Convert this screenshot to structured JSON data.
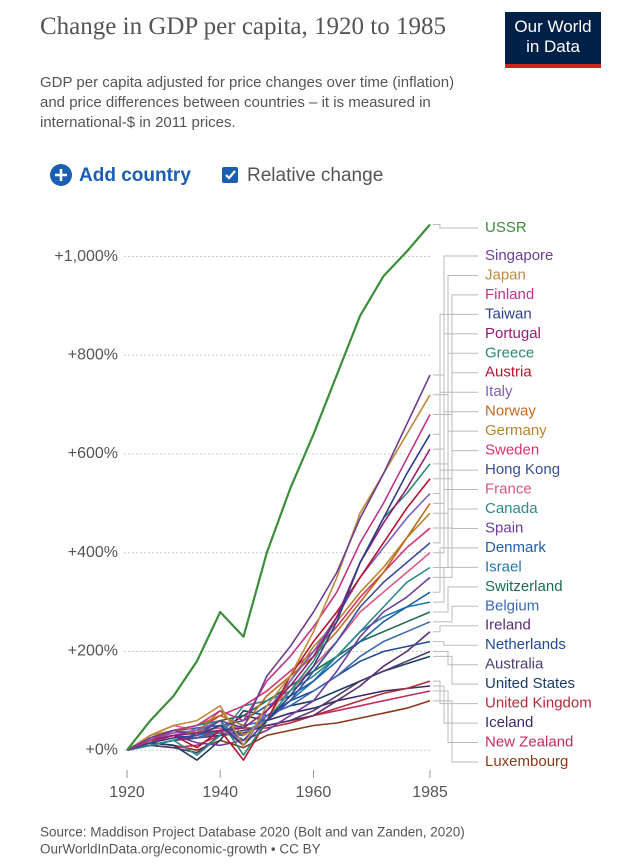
{
  "chart_data": {
    "type": "line",
    "title": "Change in GDP per capita, 1920 to 1985",
    "subtitle": "GDP per capita adjusted for price changes over time (inflation) and price differences between countries – it is measured in international-$ in 2011 prices.",
    "logo": "Our World in Data",
    "controls": {
      "add": "Add country",
      "relative": "Relative change"
    },
    "source": "Source: Maddison Project Database 2020 (Bolt and van Zanden, 2020)",
    "source_link": "OurWorldInData.org/economic-growth • CC BY",
    "x": [
      1920,
      1925,
      1930,
      1935,
      1940,
      1945,
      1950,
      1955,
      1960,
      1965,
      1970,
      1975,
      1980,
      1985
    ],
    "xlim": [
      1920,
      1985
    ],
    "xticks": [
      1920,
      1940,
      1960,
      1985
    ],
    "ylim": [
      -30,
      1070
    ],
    "yticks": [
      {
        "value": 0,
        "label": "+0%"
      },
      {
        "value": 200,
        "label": "+200%"
      },
      {
        "value": 400,
        "label": "+400%"
      },
      {
        "value": 600,
        "label": "+600%"
      },
      {
        "value": 800,
        "label": "+800%"
      },
      {
        "value": 1000,
        "label": "+1,000%"
      }
    ],
    "grid": true,
    "series": [
      {
        "name": "USSR",
        "color": "#3b8e3b",
        "values": [
          0,
          60,
          110,
          180,
          280,
          230,
          400,
          530,
          640,
          760,
          880,
          960,
          1010,
          1065
        ]
      },
      {
        "name": "Singapore",
        "color": "#6d3e91",
        "values": [
          0,
          25,
          40,
          30,
          60,
          45,
          150,
          210,
          280,
          360,
          470,
          560,
          660,
          760
        ]
      },
      {
        "name": "Japan",
        "color": "#c08a3e",
        "values": [
          0,
          30,
          50,
          60,
          90,
          10,
          90,
          150,
          240,
          350,
          480,
          560,
          640,
          720
        ]
      },
      {
        "name": "Finland",
        "color": "#c2338a",
        "values": [
          0,
          20,
          40,
          50,
          80,
          60,
          140,
          190,
          250,
          320,
          420,
          500,
          590,
          680
        ]
      },
      {
        "name": "Taiwan",
        "color": "#2b3f8a",
        "values": [
          0,
          15,
          25,
          30,
          50,
          10,
          60,
          110,
          170,
          260,
          380,
          470,
          560,
          640
        ]
      },
      {
        "name": "Portugal",
        "color": "#9a1a74",
        "values": [
          0,
          20,
          30,
          35,
          40,
          45,
          80,
          130,
          190,
          270,
          380,
          460,
          530,
          610
        ]
      },
      {
        "name": "Greece",
        "color": "#2a8a74",
        "values": [
          0,
          25,
          40,
          50,
          60,
          -10,
          60,
          120,
          180,
          270,
          380,
          470,
          520,
          580
        ]
      },
      {
        "name": "Austria",
        "color": "#b3142e",
        "values": [
          0,
          20,
          30,
          5,
          40,
          -20,
          60,
          150,
          220,
          280,
          350,
          420,
          490,
          550
        ]
      },
      {
        "name": "Italy",
        "color": "#7c5fbd",
        "values": [
          0,
          20,
          35,
          40,
          60,
          10,
          80,
          140,
          200,
          270,
          350,
          410,
          470,
          520
        ]
      },
      {
        "name": "Norway",
        "color": "#c06a1f",
        "values": [
          0,
          15,
          40,
          50,
          70,
          50,
          110,
          150,
          190,
          240,
          300,
          360,
          430,
          500
        ]
      },
      {
        "name": "Germany",
        "color": "#b7852b",
        "values": [
          0,
          30,
          40,
          35,
          80,
          30,
          60,
          140,
          210,
          260,
          320,
          370,
          430,
          480
        ]
      },
      {
        "name": "Sweden",
        "color": "#d6336c",
        "values": [
          0,
          15,
          30,
          40,
          70,
          90,
          120,
          160,
          200,
          250,
          310,
          360,
          410,
          450
        ]
      },
      {
        "name": "Hong Kong",
        "color": "#3a4d9e",
        "values": [
          0,
          20,
          40,
          30,
          50,
          30,
          60,
          100,
          160,
          220,
          290,
          340,
          380,
          420
        ]
      },
      {
        "name": "France",
        "color": "#d85a7f",
        "values": [
          0,
          30,
          50,
          40,
          45,
          10,
          80,
          120,
          170,
          220,
          280,
          320,
          360,
          400
        ]
      },
      {
        "name": "Canada",
        "color": "#2e8a8a",
        "values": [
          0,
          10,
          20,
          -10,
          30,
          90,
          100,
          120,
          150,
          190,
          240,
          290,
          340,
          370
        ]
      },
      {
        "name": "Spain",
        "color": "#6f3d9c",
        "values": [
          0,
          20,
          30,
          15,
          10,
          20,
          40,
          70,
          100,
          160,
          230,
          280,
          310,
          350
        ]
      },
      {
        "name": "Denmark",
        "color": "#1f5fa8",
        "values": [
          0,
          20,
          40,
          45,
          50,
          60,
          90,
          110,
          140,
          180,
          220,
          260,
          290,
          320
        ]
      },
      {
        "name": "Israel",
        "color": "#1a7ab0",
        "values": [
          0,
          10,
          20,
          30,
          40,
          50,
          60,
          100,
          140,
          190,
          240,
          270,
          290,
          300
        ]
      },
      {
        "name": "Switzerland",
        "color": "#1d6b4f",
        "values": [
          0,
          25,
          40,
          35,
          60,
          70,
          100,
          130,
          160,
          190,
          220,
          240,
          260,
          280
        ]
      },
      {
        "name": "Belgium",
        "color": "#3c69b5",
        "values": [
          0,
          20,
          30,
          25,
          35,
          30,
          70,
          90,
          120,
          150,
          190,
          220,
          240,
          260
        ]
      },
      {
        "name": "Ireland",
        "color": "#5a2e72",
        "values": [
          0,
          10,
          20,
          25,
          30,
          35,
          50,
          60,
          70,
          100,
          130,
          170,
          200,
          240
        ]
      },
      {
        "name": "Netherlands",
        "color": "#1f4a9a",
        "values": [
          0,
          25,
          40,
          30,
          50,
          20,
          70,
          100,
          120,
          150,
          180,
          200,
          210,
          220
        ]
      },
      {
        "name": "Australia",
        "color": "#4d3d6a",
        "values": [
          0,
          10,
          5,
          -5,
          30,
          40,
          50,
          60,
          80,
          110,
          140,
          160,
          180,
          200
        ]
      },
      {
        "name": "United States",
        "color": "#1a3d63",
        "values": [
          0,
          15,
          10,
          -20,
          20,
          80,
          70,
          90,
          100,
          120,
          140,
          160,
          175,
          190
        ]
      },
      {
        "name": "United Kingdom",
        "color": "#b22d3a",
        "values": [
          0,
          10,
          20,
          25,
          40,
          45,
          45,
          55,
          70,
          85,
          100,
          115,
          125,
          140
        ]
      },
      {
        "name": "Iceland",
        "color": "#3a2a6a",
        "values": [
          0,
          10,
          20,
          25,
          40,
          70,
          60,
          75,
          85,
          100,
          110,
          120,
          125,
          130
        ]
      },
      {
        "name": "New Zealand",
        "color": "#c22d5e",
        "values": [
          0,
          10,
          5,
          10,
          30,
          40,
          50,
          60,
          70,
          80,
          90,
          100,
          110,
          120
        ]
      },
      {
        "name": "Luxembourg",
        "color": "#8a3a1a",
        "values": [
          0,
          15,
          10,
          0,
          20,
          5,
          30,
          40,
          50,
          55,
          65,
          75,
          85,
          100
        ]
      }
    ]
  }
}
